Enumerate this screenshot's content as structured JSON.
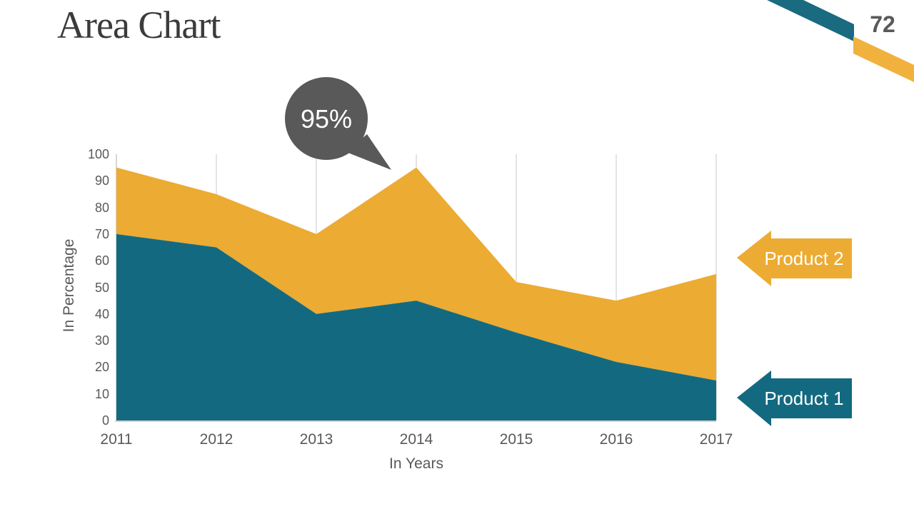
{
  "slide": {
    "title": "Area Chart",
    "page_number": "72"
  },
  "colors": {
    "product1_teal": "#136A80",
    "product2_yellow": "#ECAB32",
    "ribbon_teal": "#1A6A80",
    "ribbon_yellow": "#F0B23C",
    "callout_gray": "#595959",
    "axis_text": "#595959",
    "gridline": "#D6D6D6",
    "axis_line": "#C0C0C0",
    "title_text": "#3B3B3B",
    "label_text_on_shapes": "#FFFFFF"
  },
  "chart_data": {
    "type": "area",
    "stacked": true,
    "categories": [
      "2011",
      "2012",
      "2013",
      "2014",
      "2015",
      "2016",
      "2017"
    ],
    "series": [
      {
        "name": "Product 1",
        "color": "#136A80",
        "values": [
          70,
          65,
          40,
          45,
          33,
          22,
          15
        ]
      },
      {
        "name": "Product 2",
        "color": "#ECAB32",
        "values": [
          25,
          20,
          30,
          50,
          19,
          23,
          40
        ]
      }
    ],
    "stack_totals": [
      95,
      85,
      70,
      95,
      52,
      45,
      55
    ],
    "xlabel": "In Years",
    "ylabel": "In Percentage",
    "ylim": [
      0,
      100
    ],
    "yticks": [
      0,
      10,
      20,
      30,
      40,
      50,
      60,
      70,
      80,
      90,
      100
    ],
    "grid": "vertical-only",
    "legend_position": "right",
    "annotation": {
      "text": "95%",
      "year": "2014",
      "value": 95
    }
  },
  "legend": {
    "items": [
      {
        "label": "Product 2",
        "color": "#ECAB32"
      },
      {
        "label": "Product 1",
        "color": "#136A80"
      }
    ]
  }
}
